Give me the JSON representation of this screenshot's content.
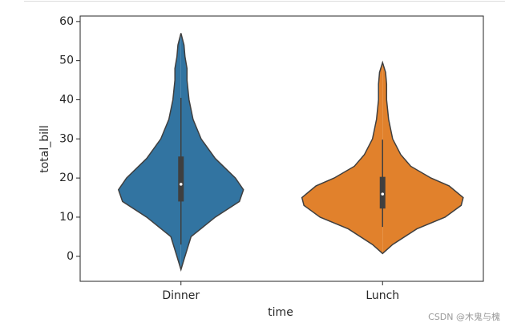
{
  "chart_data": {
    "type": "violin",
    "xlabel": "time",
    "ylabel": "total_bill",
    "categories": [
      "Dinner",
      "Lunch"
    ],
    "ylim": [
      -6.4,
      61.4
    ],
    "yticks": [
      0,
      10,
      20,
      30,
      40,
      50,
      60
    ],
    "violins": [
      {
        "name": "Dinner",
        "color": "#3274a1",
        "kde_y": [
          -3.4,
          0,
          5,
          10,
          14,
          17,
          20,
          25,
          30,
          35,
          40,
          45,
          48,
          51,
          54,
          57
        ],
        "kde_width": [
          0,
          0.02,
          0.05,
          0.17,
          0.29,
          0.31,
          0.27,
          0.17,
          0.1,
          0.06,
          0.04,
          0.03,
          0.03,
          0.02,
          0.015,
          0
        ],
        "whisker_low": 3,
        "q1": 14,
        "median": 18.4,
        "q3": 25.5,
        "whisker_high": 40.5
      },
      {
        "name": "Lunch",
        "color": "#e1812c",
        "kde_y": [
          0.7,
          3,
          7,
          10,
          13,
          15,
          18,
          20,
          23,
          26,
          30,
          35,
          40,
          44,
          47,
          49.5
        ],
        "kde_width": [
          0,
          0.05,
          0.17,
          0.31,
          0.39,
          0.4,
          0.33,
          0.24,
          0.14,
          0.09,
          0.05,
          0.03,
          0.02,
          0.02,
          0.015,
          0
        ],
        "whisker_low": 7.5,
        "q1": 12.2,
        "median": 15.9,
        "q3": 20.3,
        "whisker_high": 29.8
      }
    ]
  },
  "watermark": "CSDN @木鬼与槐"
}
